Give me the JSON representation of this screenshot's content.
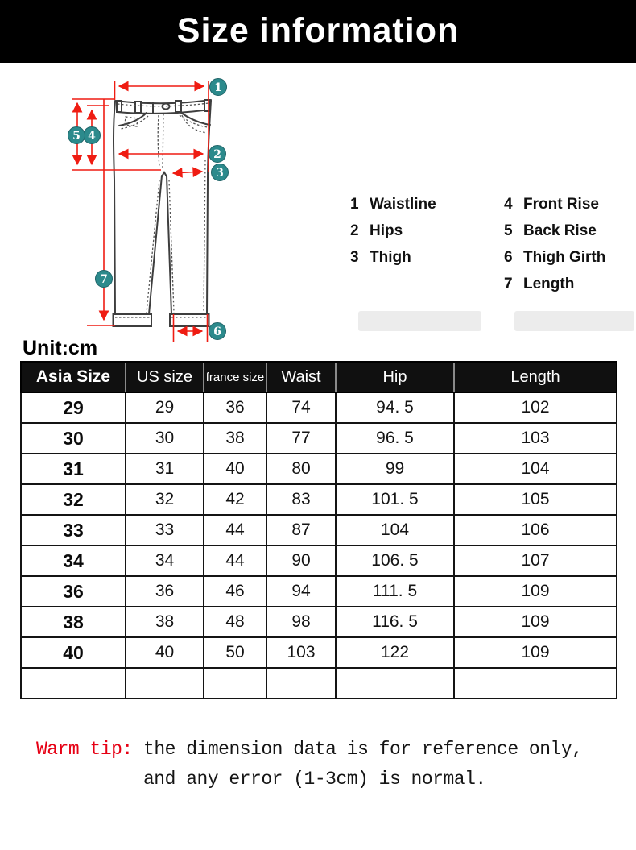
{
  "title": "Size information",
  "unit_label": "Unit:cm",
  "colors": {
    "accent_red": "#ef1c12",
    "marker_teal": "#2c8a8c",
    "header_bg": "#101010",
    "tip_red": "#e60014"
  },
  "diagram": {
    "markers": [
      "1",
      "2",
      "3",
      "4",
      "5",
      "6",
      "7"
    ],
    "legend_left": [
      {
        "num": "1",
        "label": "Waistline"
      },
      {
        "num": "2",
        "label": "Hips"
      },
      {
        "num": "3",
        "label": "Thigh"
      }
    ],
    "legend_right": [
      {
        "num": "4",
        "label": "Front Rise"
      },
      {
        "num": "5",
        "label": "Back Rise"
      },
      {
        "num": "6",
        "label": "Thigh Girth"
      },
      {
        "num": "7",
        "label": "Length"
      }
    ]
  },
  "table": {
    "headers": [
      "Asia Size",
      "US size",
      "france size",
      "Waist",
      "Hip",
      "Length"
    ],
    "rows": [
      [
        "29",
        "29",
        "36",
        "74",
        "94. 5",
        "102"
      ],
      [
        "30",
        "30",
        "38",
        "77",
        "96. 5",
        "103"
      ],
      [
        "31",
        "31",
        "40",
        "80",
        "99",
        "104"
      ],
      [
        "32",
        "32",
        "42",
        "83",
        "101. 5",
        "105"
      ],
      [
        "33",
        "33",
        "44",
        "87",
        "104",
        "106"
      ],
      [
        "34",
        "34",
        "44",
        "90",
        "106. 5",
        "107"
      ],
      [
        "36",
        "36",
        "46",
        "94",
        "111. 5",
        "109"
      ],
      [
        "38",
        "38",
        "48",
        "98",
        "116. 5",
        "109"
      ],
      [
        "40",
        "40",
        "50",
        "103",
        "122",
        "109"
      ],
      [
        "",
        "",
        "",
        "",
        "",
        ""
      ]
    ]
  },
  "warm_tip": {
    "prefix": "Warm tip:",
    "line1": " the dimension data is for reference only,",
    "line2": "and any error (1-3cm) is normal."
  }
}
